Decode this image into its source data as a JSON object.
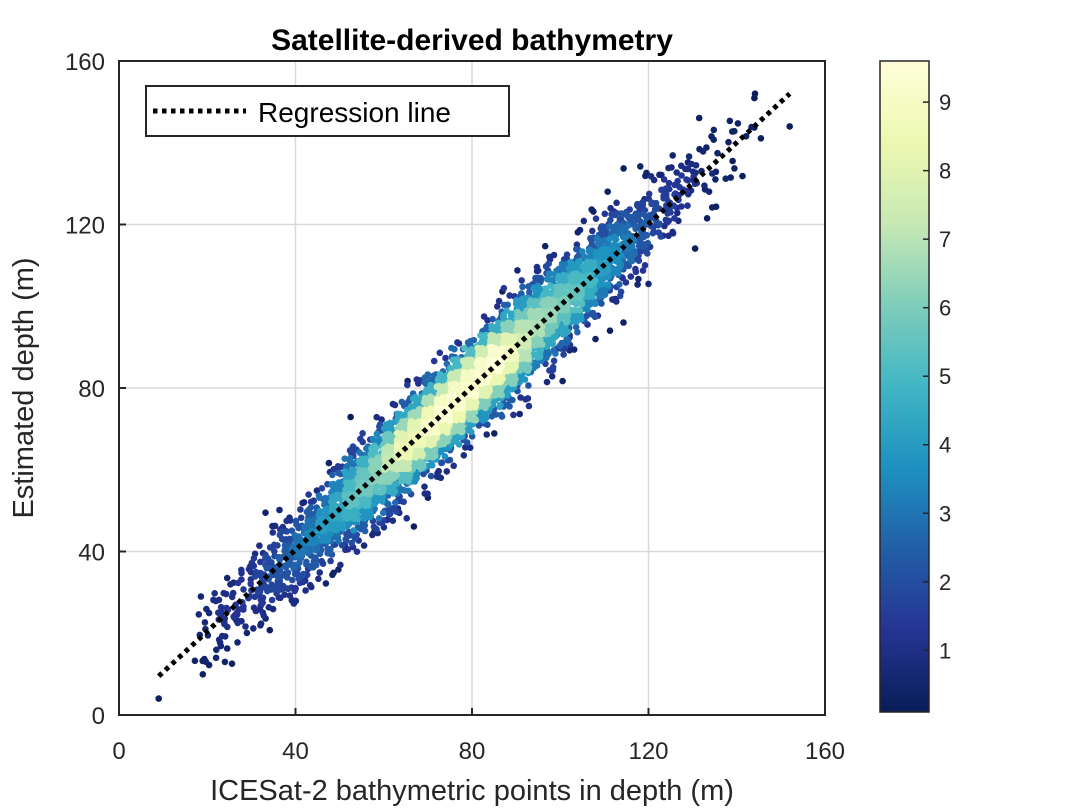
{
  "chart_data": {
    "type": "scatter",
    "title": "Satellite-derived bathymetry",
    "xlabel": "ICESat-2 bathymetric points in depth (m)",
    "ylabel": "Estimated depth (m)",
    "xlim": [
      0,
      160
    ],
    "ylim": [
      0,
      160
    ],
    "xticks": [
      0,
      40,
      80,
      120,
      160
    ],
    "yticks": [
      0,
      40,
      80,
      120,
      160
    ],
    "grid": true,
    "legend": {
      "placement": "top-left",
      "entries": [
        "Regression line"
      ]
    },
    "regression_line": {
      "x": [
        9,
        152
      ],
      "y": [
        9.5,
        152
      ]
    },
    "density_colorbar": {
      "ticks": [
        1,
        2,
        3,
        4,
        5,
        6,
        7,
        8,
        9
      ],
      "range": [
        0.1,
        9.6
      ],
      "colormap": [
        "#081d58",
        "#253494",
        "#225ea8",
        "#1d91c0",
        "#41b6c4",
        "#7fcdbb",
        "#c7e9b4",
        "#edf8b1",
        "#ffffd9"
      ]
    },
    "point_cloud": {
      "n_points": 5200,
      "x_range": [
        9,
        152
      ],
      "slope": 1.0,
      "intercept": 0.5,
      "residual_std": 5.5,
      "peak_density_x": 78
    },
    "notable_points": [
      {
        "x": 9,
        "y": 4
      },
      {
        "x": 22,
        "y": 14
      },
      {
        "x": 24,
        "y": 13
      },
      {
        "x": 152,
        "y": 144
      }
    ]
  }
}
